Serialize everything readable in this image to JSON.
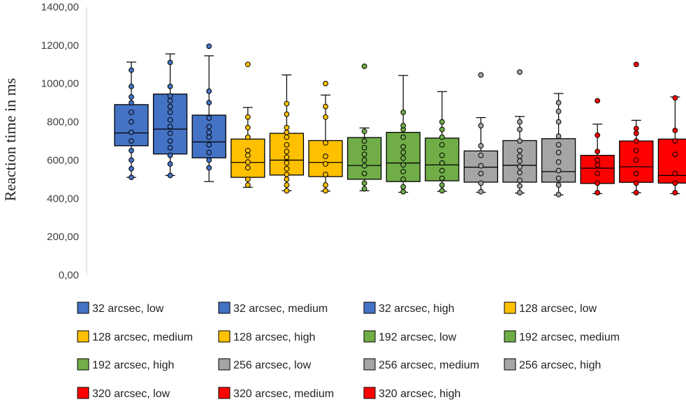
{
  "chart_data": {
    "type": "boxplot",
    "title": "",
    "xlabel": "",
    "ylabel": "Reaction time in ms",
    "ylim": [
      0,
      1400
    ],
    "yticks": [
      "0,00",
      "200,00",
      "400,00",
      "600,00",
      "800,00",
      "1000,00",
      "1200,00",
      "1400,00"
    ],
    "grid": false,
    "legend_position": "bottom",
    "series": [
      {
        "name": "32 arcsec, low",
        "color": "#4472C4",
        "whisker_low": 510,
        "q1": 675,
        "median": 742,
        "q3": 890,
        "whisker_high": 1112,
        "points": [
          510,
          555,
          600,
          650,
          700,
          745,
          800,
          850,
          900,
          930,
          985,
          1070
        ]
      },
      {
        "name": "32 arcsec, medium",
        "color": "#4472C4",
        "whisker_low": 520,
        "q1": 632,
        "median": 762,
        "q3": 945,
        "whisker_high": 1155,
        "points": [
          520,
          580,
          625,
          665,
          700,
          740,
          775,
          810,
          850,
          880,
          910,
          935,
          985,
          1110
        ]
      },
      {
        "name": "32 arcsec, high",
        "color": "#4472C4",
        "whisker_low": 488,
        "q1": 612,
        "median": 695,
        "q3": 835,
        "whisker_high": 1145,
        "points": [
          560,
          600,
          640,
          680,
          720,
          745,
          775,
          820,
          900,
          960,
          1195
        ]
      },
      {
        "name": "128 arcsec, low",
        "color": "#FFC000",
        "whisker_low": 458,
        "q1": 510,
        "median": 588,
        "q3": 710,
        "whisker_high": 875,
        "points": [
          470,
          500,
          560,
          590,
          625,
          650,
          720,
          770,
          825,
          1100
        ]
      },
      {
        "name": "128 arcsec, medium",
        "color": "#FFC000",
        "whisker_low": 440,
        "q1": 522,
        "median": 600,
        "q3": 740,
        "whisker_high": 1045,
        "points": [
          440,
          470,
          500,
          525,
          555,
          585,
          615,
          645,
          680,
          720,
          745,
          770,
          840,
          895
        ]
      },
      {
        "name": "128 arcsec, high",
        "color": "#FFC000",
        "whisker_low": 438,
        "q1": 514,
        "median": 588,
        "q3": 702,
        "whisker_high": 940,
        "points": [
          440,
          470,
          525,
          580,
          620,
          690,
          825,
          880,
          1000
        ]
      },
      {
        "name": "192 arcsec, low",
        "color": "#70AD47",
        "whisker_low": 440,
        "q1": 500,
        "median": 572,
        "q3": 718,
        "whisker_high": 768,
        "points": [
          450,
          480,
          530,
          570,
          600,
          630,
          665,
          700,
          750,
          1090
        ]
      },
      {
        "name": "192 arcsec, medium",
        "color": "#70AD47",
        "whisker_low": 432,
        "q1": 488,
        "median": 585,
        "q3": 745,
        "whisker_high": 1042,
        "points": [
          435,
          460,
          500,
          540,
          575,
          610,
          640,
          670,
          720,
          760,
          780,
          850
        ]
      },
      {
        "name": "192 arcsec, high",
        "color": "#70AD47",
        "whisker_low": 437,
        "q1": 492,
        "median": 575,
        "q3": 715,
        "whisker_high": 958,
        "points": [
          440,
          470,
          505,
          545,
          585,
          625,
          680,
          720,
          760,
          800
        ]
      },
      {
        "name": "256 arcsec, low",
        "color": "#A5A5A5",
        "whisker_low": 432,
        "q1": 485,
        "median": 563,
        "q3": 648,
        "whisker_high": 822,
        "points": [
          435,
          480,
          530,
          570,
          625,
          675,
          780,
          1045
        ]
      },
      {
        "name": "256 arcsec, medium",
        "color": "#A5A5A5",
        "whisker_low": 428,
        "q1": 485,
        "median": 573,
        "q3": 702,
        "whisker_high": 828,
        "points": [
          430,
          465,
          495,
          535,
          565,
          595,
          620,
          650,
          700,
          760,
          800,
          1060
        ]
      },
      {
        "name": "256 arcsec, high",
        "color": "#A5A5A5",
        "whisker_low": 418,
        "q1": 485,
        "median": 540,
        "q3": 712,
        "whisker_high": 948,
        "points": [
          420,
          470,
          505,
          545,
          590,
          640,
          680,
          725,
          800,
          855,
          900
        ]
      },
      {
        "name": "320 arcsec, low",
        "color": "#FF0000",
        "whisker_low": 425,
        "q1": 478,
        "median": 558,
        "q3": 625,
        "whisker_high": 788,
        "points": [
          430,
          480,
          530,
          575,
          600,
          645,
          730,
          910
        ]
      },
      {
        "name": "320 arcsec, medium",
        "color": "#FF0000",
        "whisker_low": 430,
        "q1": 484,
        "median": 565,
        "q3": 700,
        "whisker_high": 808,
        "points": [
          430,
          480,
          530,
          600,
          650,
          700,
          740,
          765,
          1100
        ]
      },
      {
        "name": "320 arcsec, high",
        "color": "#FF0000",
        "whisker_low": 425,
        "q1": 480,
        "median": 520,
        "q3": 710,
        "whisker_high": 930,
        "points": [
          430,
          480,
          530,
          630,
          700,
          755,
          925
        ]
      }
    ]
  }
}
